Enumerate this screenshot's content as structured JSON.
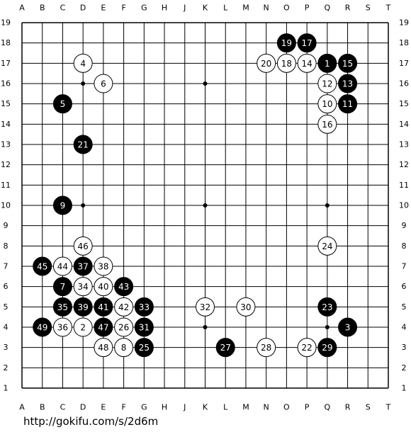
{
  "board": {
    "columns": [
      "A",
      "B",
      "C",
      "D",
      "E",
      "F",
      "G",
      "H",
      "J",
      "K",
      "L",
      "M",
      "N",
      "O",
      "P",
      "Q",
      "R",
      "S",
      "T"
    ],
    "rows": [
      19,
      18,
      17,
      16,
      15,
      14,
      13,
      12,
      11,
      10,
      9,
      8,
      7,
      6,
      5,
      4,
      3,
      2,
      1
    ],
    "stars": [
      [
        "D",
        4
      ],
      [
        "D",
        10
      ],
      [
        "D",
        16
      ],
      [
        "K",
        4
      ],
      [
        "K",
        10
      ],
      [
        "K",
        16
      ],
      [
        "Q",
        4
      ],
      [
        "Q",
        10
      ],
      [
        "Q",
        16
      ]
    ],
    "stones": [
      {
        "label": 1,
        "color": "black",
        "col": "Q",
        "row": 17
      },
      {
        "label": 2,
        "color": "white",
        "col": "D",
        "row": 4
      },
      {
        "label": 3,
        "color": "black",
        "col": "R",
        "row": 4
      },
      {
        "label": 4,
        "color": "white",
        "col": "D",
        "row": 17
      },
      {
        "label": 5,
        "color": "black",
        "col": "C",
        "row": 15
      },
      {
        "label": 6,
        "color": "white",
        "col": "E",
        "row": 16
      },
      {
        "label": 7,
        "color": "black",
        "col": "C",
        "row": 6
      },
      {
        "label": 8,
        "color": "white",
        "col": "F",
        "row": 3
      },
      {
        "label": 9,
        "color": "black",
        "col": "C",
        "row": 10
      },
      {
        "label": 10,
        "color": "white",
        "col": "Q",
        "row": 15
      },
      {
        "label": 11,
        "color": "black",
        "col": "R",
        "row": 15
      },
      {
        "label": 12,
        "color": "white",
        "col": "Q",
        "row": 16
      },
      {
        "label": 13,
        "color": "black",
        "col": "R",
        "row": 16
      },
      {
        "label": 14,
        "color": "white",
        "col": "P",
        "row": 17
      },
      {
        "label": 15,
        "color": "black",
        "col": "R",
        "row": 17
      },
      {
        "label": 16,
        "color": "white",
        "col": "Q",
        "row": 14
      },
      {
        "label": 17,
        "color": "black",
        "col": "P",
        "row": 18
      },
      {
        "label": 18,
        "color": "white",
        "col": "O",
        "row": 17
      },
      {
        "label": 19,
        "color": "black",
        "col": "O",
        "row": 18
      },
      {
        "label": 20,
        "color": "white",
        "col": "N",
        "row": 17
      },
      {
        "label": 21,
        "color": "black",
        "col": "D",
        "row": 13
      },
      {
        "label": 22,
        "color": "white",
        "col": "P",
        "row": 3
      },
      {
        "label": 23,
        "color": "black",
        "col": "Q",
        "row": 5
      },
      {
        "label": 24,
        "color": "white",
        "col": "Q",
        "row": 8
      },
      {
        "label": 25,
        "color": "black",
        "col": "G",
        "row": 3
      },
      {
        "label": 26,
        "color": "white",
        "col": "F",
        "row": 4
      },
      {
        "label": 27,
        "color": "black",
        "col": "L",
        "row": 3
      },
      {
        "label": 28,
        "color": "white",
        "col": "N",
        "row": 3
      },
      {
        "label": 29,
        "color": "black",
        "col": "Q",
        "row": 3
      },
      {
        "label": 30,
        "color": "white",
        "col": "M",
        "row": 5
      },
      {
        "label": 31,
        "color": "black",
        "col": "G",
        "row": 4
      },
      {
        "label": 32,
        "color": "white",
        "col": "K",
        "row": 5
      },
      {
        "label": 33,
        "color": "black",
        "col": "G",
        "row": 5
      },
      {
        "label": 34,
        "color": "white",
        "col": "D",
        "row": 6
      },
      {
        "label": 35,
        "color": "black",
        "col": "C",
        "row": 5
      },
      {
        "label": 36,
        "color": "white",
        "col": "C",
        "row": 4
      },
      {
        "label": 37,
        "color": "black",
        "col": "D",
        "row": 7
      },
      {
        "label": 38,
        "color": "white",
        "col": "E",
        "row": 7
      },
      {
        "label": 39,
        "color": "black",
        "col": "D",
        "row": 5
      },
      {
        "label": 40,
        "color": "white",
        "col": "E",
        "row": 6
      },
      {
        "label": 41,
        "color": "black",
        "col": "E",
        "row": 5
      },
      {
        "label": 42,
        "color": "white",
        "col": "F",
        "row": 5
      },
      {
        "label": 43,
        "color": "black",
        "col": "F",
        "row": 6
      },
      {
        "label": 44,
        "color": "white",
        "col": "C",
        "row": 7
      },
      {
        "label": 45,
        "color": "black",
        "col": "B",
        "row": 7
      },
      {
        "label": 46,
        "color": "white",
        "col": "D",
        "row": 8
      },
      {
        "label": 47,
        "color": "black",
        "col": "E",
        "row": 4
      },
      {
        "label": 48,
        "color": "white",
        "col": "E",
        "row": 3
      },
      {
        "label": 49,
        "color": "black",
        "col": "B",
        "row": 4
      }
    ]
  },
  "footer": {
    "url": "http://gokifu.com/s/2d6m"
  }
}
